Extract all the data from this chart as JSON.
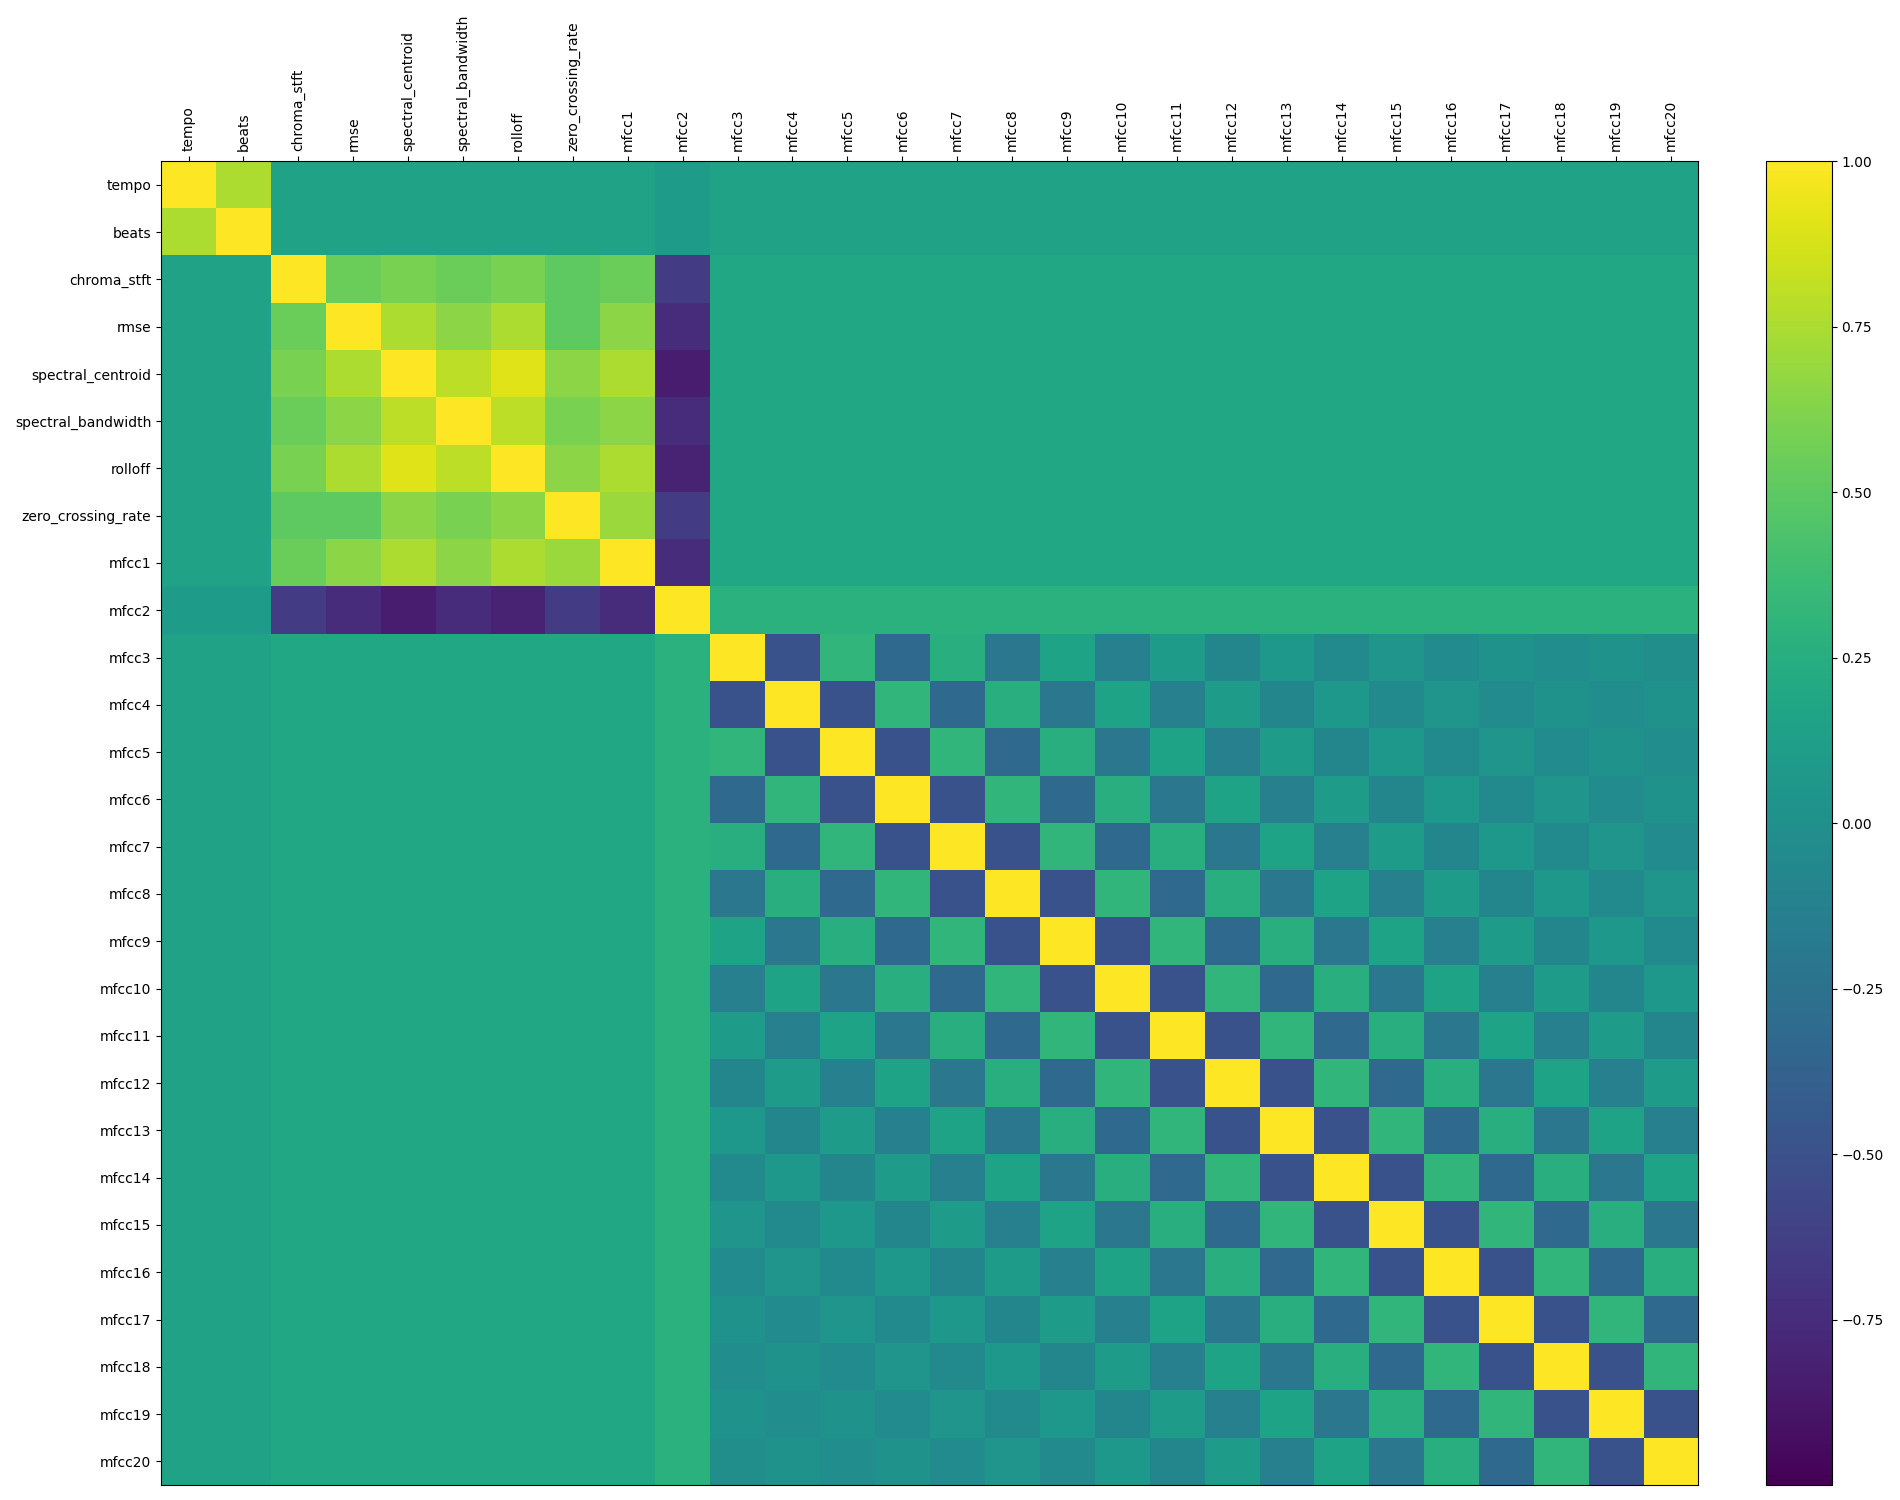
{
  "labels": [
    "tempo",
    "beats",
    "chroma_stft",
    "rmse",
    "spectral_centroid",
    "spectral_bandwidth",
    "rolloff",
    "zero_crossing_rate",
    "mfcc1",
    "mfcc2",
    "mfcc3",
    "mfcc4",
    "mfcc5",
    "mfcc6",
    "mfcc7",
    "mfcc8",
    "mfcc9",
    "mfcc10",
    "mfcc11",
    "mfcc12",
    "mfcc13",
    "mfcc14",
    "mfcc15",
    "mfcc16",
    "mfcc17",
    "mfcc18",
    "mfcc19",
    "mfcc20"
  ],
  "cmap": "viridis",
  "vmin": -1.0,
  "vmax": 1.0,
  "colorbar_ticks": [
    1.0,
    0.75,
    0.5,
    0.25,
    0.0,
    -0.25,
    -0.5,
    -0.75
  ],
  "figsize": [
    19.0,
    15.0
  ],
  "dpi": 100
}
